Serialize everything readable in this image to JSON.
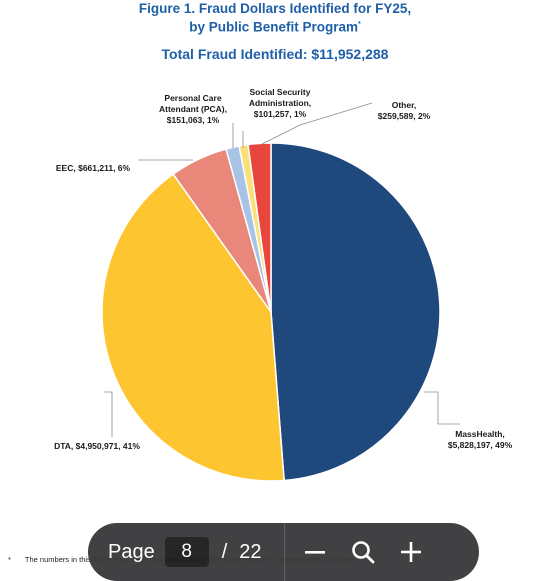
{
  "title_line1": "Figure 1. Fraud Dollars Identified for FY25,",
  "title_line2": "by Public Benefit Program",
  "title_marker": "*",
  "total_label": "Total Fraud Identified: $11,952,288",
  "chart_data": {
    "type": "pie",
    "title": "Figure 1. Fraud Dollars Identified for FY25, by Public Benefit Program",
    "subtitle": "Total Fraud Identified: $11,952,288",
    "total": 11952288,
    "slices": [
      {
        "name": "MassHealth",
        "value": 5828197,
        "percent": 49,
        "color": "#1f497d",
        "label_lines": [
          "MassHealth,",
          "$5,828,197, 49%"
        ]
      },
      {
        "name": "DTA",
        "value": 4950971,
        "percent": 41,
        "color": "#fdc52f",
        "label_lines": [
          "DTA, $4,950,971, 41%"
        ]
      },
      {
        "name": "EEC",
        "value": 661211,
        "percent": 6,
        "color": "#e8877a",
        "label_lines": [
          "EEC, $661,211, 6%"
        ]
      },
      {
        "name": "Personal Care Attendant (PCA)",
        "value": 151063,
        "percent": 1,
        "color": "#a8c3e6",
        "label_lines": [
          "Personal Care",
          "Attendant (PCA),",
          "$151,063, 1%"
        ]
      },
      {
        "name": "Social Security Administration",
        "value": 101257,
        "percent": 1,
        "color": "#fbe07a",
        "label_lines": [
          "Social Security",
          "Administration,",
          "$101,257, 1%"
        ]
      },
      {
        "name": "Other",
        "value": 259589,
        "percent": 2,
        "color": "#e8453c",
        "label_lines": [
          "Other,",
          "$259,589, 2%"
        ]
      }
    ]
  },
  "footnote": {
    "marker": "*",
    "text": "The numbers in this figure have been rounded down to the nearest dollar for presentation purposes."
  },
  "viewer": {
    "page_label": "Page",
    "current_page": "8",
    "separator": "/",
    "total_pages": "22",
    "zoom_out_icon": "minus-icon",
    "zoom_icon": "magnifier-icon",
    "zoom_in_icon": "plus-icon"
  }
}
